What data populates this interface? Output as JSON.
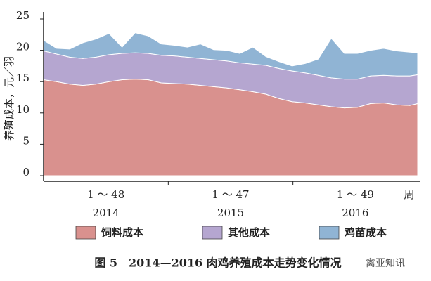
{
  "chart_data": {
    "type": "stacked-area",
    "y_label": "养殖成本，元／羽",
    "x_unit": "周",
    "x_groups": [
      {
        "weeks": "1 ～ 48",
        "year": "2014"
      },
      {
        "weeks": "1 ～ 47",
        "year": "2015"
      },
      {
        "weeks": "1 ～ 49",
        "year": "2016"
      }
    ],
    "x": [
      1,
      6,
      11,
      16,
      21,
      26,
      31,
      36,
      41,
      46,
      51,
      56,
      61,
      66,
      71,
      76,
      81,
      86,
      91,
      96,
      101,
      106,
      111,
      116,
      121,
      126,
      131,
      136,
      141,
      144
    ],
    "xlim": [
      1,
      144
    ],
    "ylim": [
      0,
      25
    ],
    "yticks": [
      0,
      5,
      10,
      15,
      20,
      25
    ],
    "series": [
      {
        "name": "饲料成本",
        "color": "#d9918e",
        "values": [
          15.3,
          15.0,
          14.6,
          14.4,
          14.6,
          15.0,
          15.3,
          15.4,
          15.3,
          14.8,
          14.7,
          14.6,
          14.4,
          14.2,
          14.0,
          13.7,
          13.4,
          13.0,
          12.3,
          11.8,
          11.6,
          11.3,
          11.0,
          10.8,
          10.9,
          11.5,
          11.6,
          11.3,
          11.2,
          11.5
        ]
      },
      {
        "name": "其他成本",
        "color": "#b5a6d0",
        "values": [
          4.6,
          4.4,
          4.3,
          4.3,
          4.3,
          4.3,
          4.2,
          4.2,
          4.2,
          4.4,
          4.4,
          4.3,
          4.3,
          4.3,
          4.3,
          4.3,
          4.4,
          4.6,
          4.8,
          4.9,
          4.8,
          4.7,
          4.6,
          4.6,
          4.5,
          4.4,
          4.4,
          4.6,
          4.7,
          4.6
        ]
      },
      {
        "name": "鸡苗成本",
        "color": "#90b4d4",
        "values": [
          1.7,
          0.9,
          1.3,
          2.5,
          2.9,
          3.4,
          1.0,
          3.2,
          2.8,
          1.8,
          1.7,
          1.6,
          2.3,
          1.6,
          1.7,
          1.5,
          2.7,
          1.4,
          1.1,
          0.8,
          1.5,
          2.6,
          6.3,
          4.1,
          4.1,
          4.1,
          4.3,
          4.0,
          3.8,
          3.5
        ]
      }
    ]
  },
  "caption": "图 5　2014—2016 肉鸡养殖成本走势变化情况",
  "watermark": "禽亚知讯"
}
